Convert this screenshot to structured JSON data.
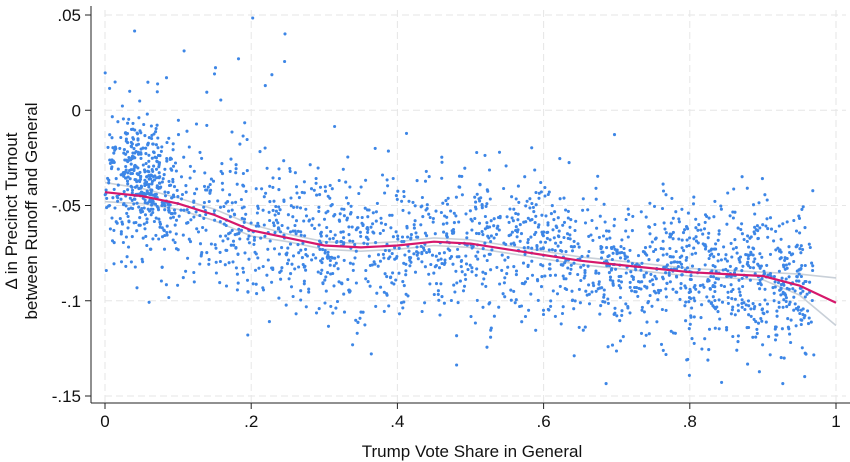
{
  "chart_data": {
    "type": "scatter",
    "title": "",
    "xlabel": "Trump Vote Share in General",
    "ylabel_lines": [
      "Δ in Precinct Turnout",
      "between Runoff and General"
    ],
    "xlim": [
      0,
      1
    ],
    "ylim": [
      -0.155,
      0.06
    ],
    "x_ticks": [
      0,
      0.2,
      0.4,
      0.6,
      0.8,
      1
    ],
    "x_tick_labels": [
      "0",
      ".2",
      ".4",
      ".6",
      ".8",
      "1"
    ],
    "y_ticks": [
      0.05,
      0,
      -0.05,
      -0.1,
      -0.15
    ],
    "y_tick_labels": [
      ".05",
      "0",
      "-.05",
      "-.1",
      "-.15"
    ],
    "grid": true,
    "legend": "none",
    "colors": {
      "points": "#3d86e6",
      "smooth_line": "#d6186b",
      "confidence_band": "#c9d0d8",
      "grid": "#e6e6e6",
      "axis": "#222222"
    },
    "point_cloud": {
      "count": 2300,
      "description_note": "",
      "clusters": [
        {
          "x_range": [
            0.025,
            0.075
          ],
          "y_center": -0.03,
          "y_spread": 0.012,
          "share": 0.07
        }
      ]
    },
    "smooth": {
      "x": [
        0.0,
        0.05,
        0.1,
        0.15,
        0.2,
        0.25,
        0.3,
        0.35,
        0.4,
        0.45,
        0.5,
        0.55,
        0.6,
        0.65,
        0.7,
        0.75,
        0.8,
        0.85,
        0.9,
        0.95,
        1.0
      ],
      "y": [
        -0.043,
        -0.045,
        -0.049,
        -0.055,
        -0.063,
        -0.067,
        -0.071,
        -0.072,
        -0.071,
        -0.069,
        -0.07,
        -0.073,
        -0.076,
        -0.079,
        -0.081,
        -0.083,
        -0.085,
        -0.086,
        -0.087,
        -0.092,
        -0.101
      ]
    },
    "band_upper": [
      -0.038,
      -0.041,
      -0.046,
      -0.052,
      -0.06,
      -0.065,
      -0.069,
      -0.07,
      -0.069,
      -0.067,
      -0.068,
      -0.071,
      -0.074,
      -0.077,
      -0.079,
      -0.081,
      -0.083,
      -0.084,
      -0.085,
      -0.086,
      -0.088
    ],
    "band_lower": [
      -0.048,
      -0.049,
      -0.052,
      -0.058,
      -0.066,
      -0.069,
      -0.073,
      -0.074,
      -0.073,
      -0.071,
      -0.072,
      -0.075,
      -0.078,
      -0.081,
      -0.083,
      -0.085,
      -0.087,
      -0.088,
      -0.089,
      -0.097,
      -0.113
    ]
  }
}
